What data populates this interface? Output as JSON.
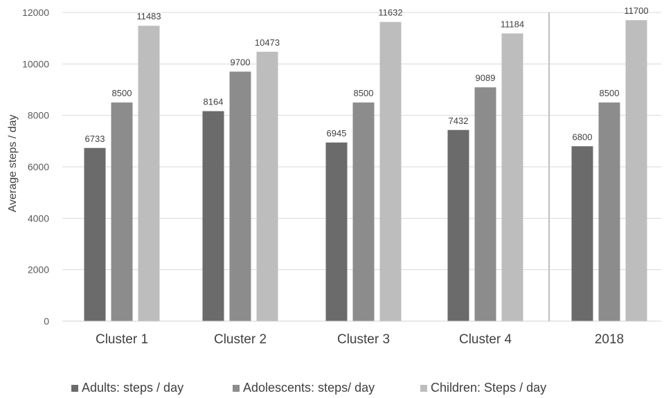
{
  "chart_data": {
    "type": "bar",
    "categories": [
      "Cluster 1",
      "Cluster 2",
      "Cluster 3",
      "Cluster 4",
      "2018"
    ],
    "series": [
      {
        "name": "Adults: steps / day",
        "values": [
          6733,
          8164,
          6945,
          7432,
          6800
        ],
        "color": "#6b6b6b"
      },
      {
        "name": "Adolescents: steps/ day",
        "values": [
          8500,
          9700,
          8500,
          9089,
          8500
        ],
        "color": "#8c8c8c"
      },
      {
        "name": "Children: Steps / day",
        "values": [
          11483,
          10473,
          11632,
          11184,
          11700
        ],
        "color": "#bdbdbd"
      }
    ],
    "data_labels": [
      [
        "6733",
        "8500",
        "11483"
      ],
      [
        "8164",
        "9700",
        "10473"
      ],
      [
        "6945",
        "8500",
        "11632"
      ],
      [
        "7432",
        "9089",
        "11184"
      ],
      [
        "6800",
        "8500",
        "11700"
      ]
    ],
    "ylabel": "Average steps / day",
    "xlabel": "",
    "ylim": [
      0,
      12000
    ],
    "yticks": [
      "0",
      "2000",
      "4000",
      "6000",
      "8000",
      "10000",
      "12000"
    ],
    "grid": true,
    "legend": "bottom",
    "separator_before_category": "2018"
  }
}
